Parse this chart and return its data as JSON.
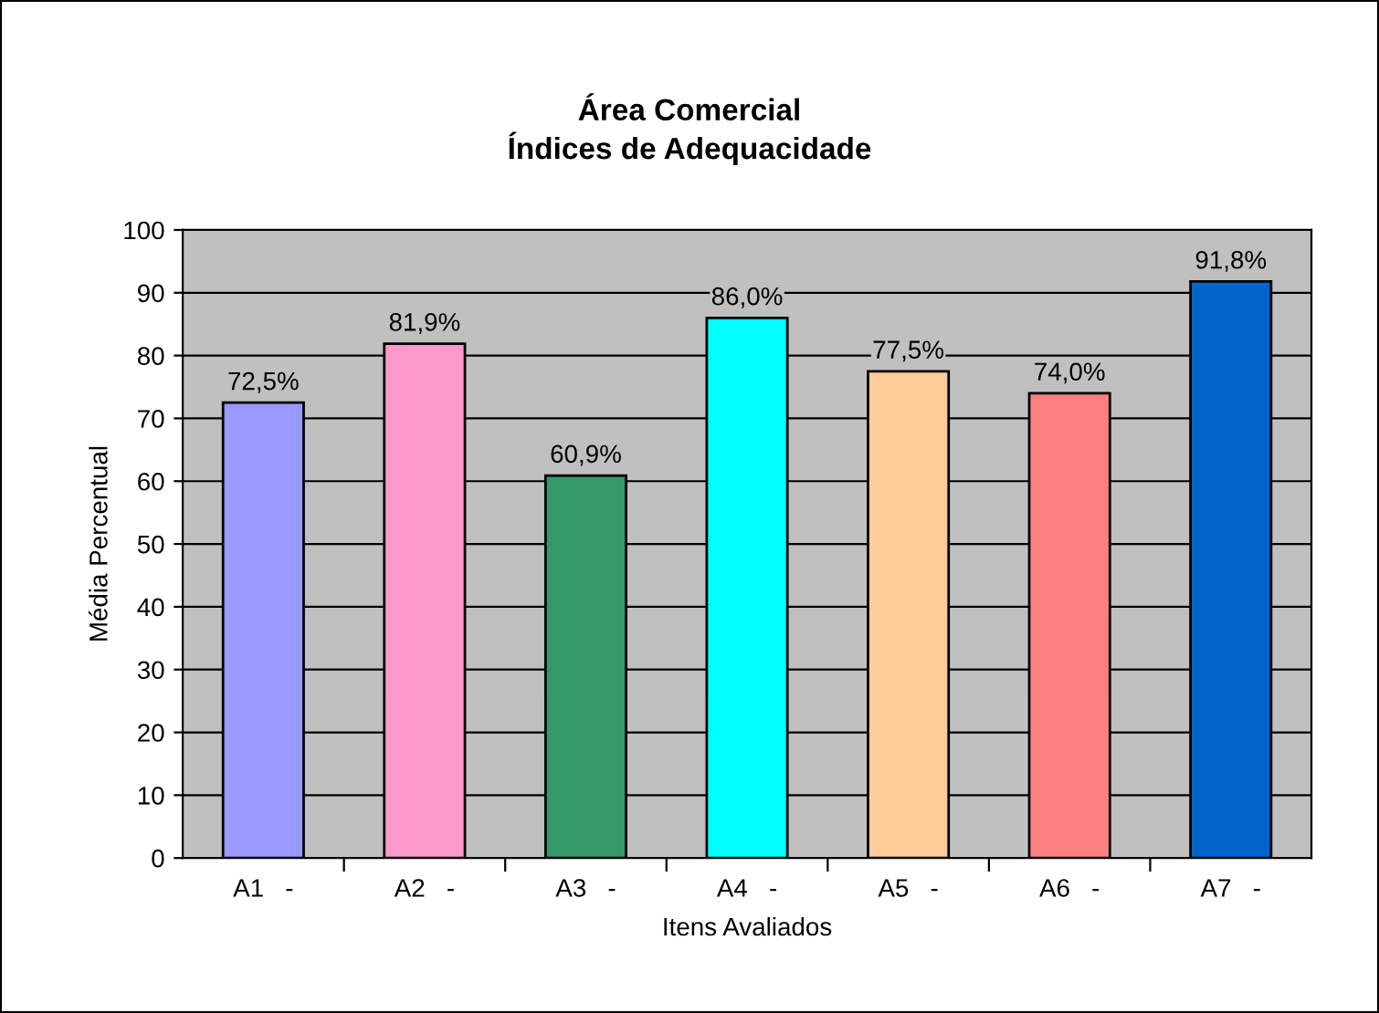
{
  "chart_data": {
    "type": "bar",
    "title": "Área Comercial\nÍndices de Adequacidade",
    "xlabel": "Itens Avaliados",
    "ylabel": "Média Percentual",
    "categories": [
      "A1   -",
      "A2   -",
      "A3   -",
      "A4   -",
      "A5   -",
      "A6   -",
      "A7   -"
    ],
    "values": [
      72.5,
      81.9,
      60.9,
      86.0,
      77.5,
      74.0,
      91.8
    ],
    "colors": [
      "#9999ff",
      "#ff99cc",
      "#339966",
      "#00ffff",
      "#ffcc99",
      "#ff8080",
      "#0066cc"
    ],
    "value_labels": [
      "72,5%",
      "81,9%",
      "60,9%",
      "86,0%",
      "77,5%",
      "74,0%",
      "91,8%"
    ],
    "ylim": [
      0,
      100
    ],
    "yticks": [
      0,
      10,
      20,
      30,
      40,
      50,
      60,
      70,
      80,
      90,
      100
    ],
    "grid": "y",
    "legend": false
  }
}
